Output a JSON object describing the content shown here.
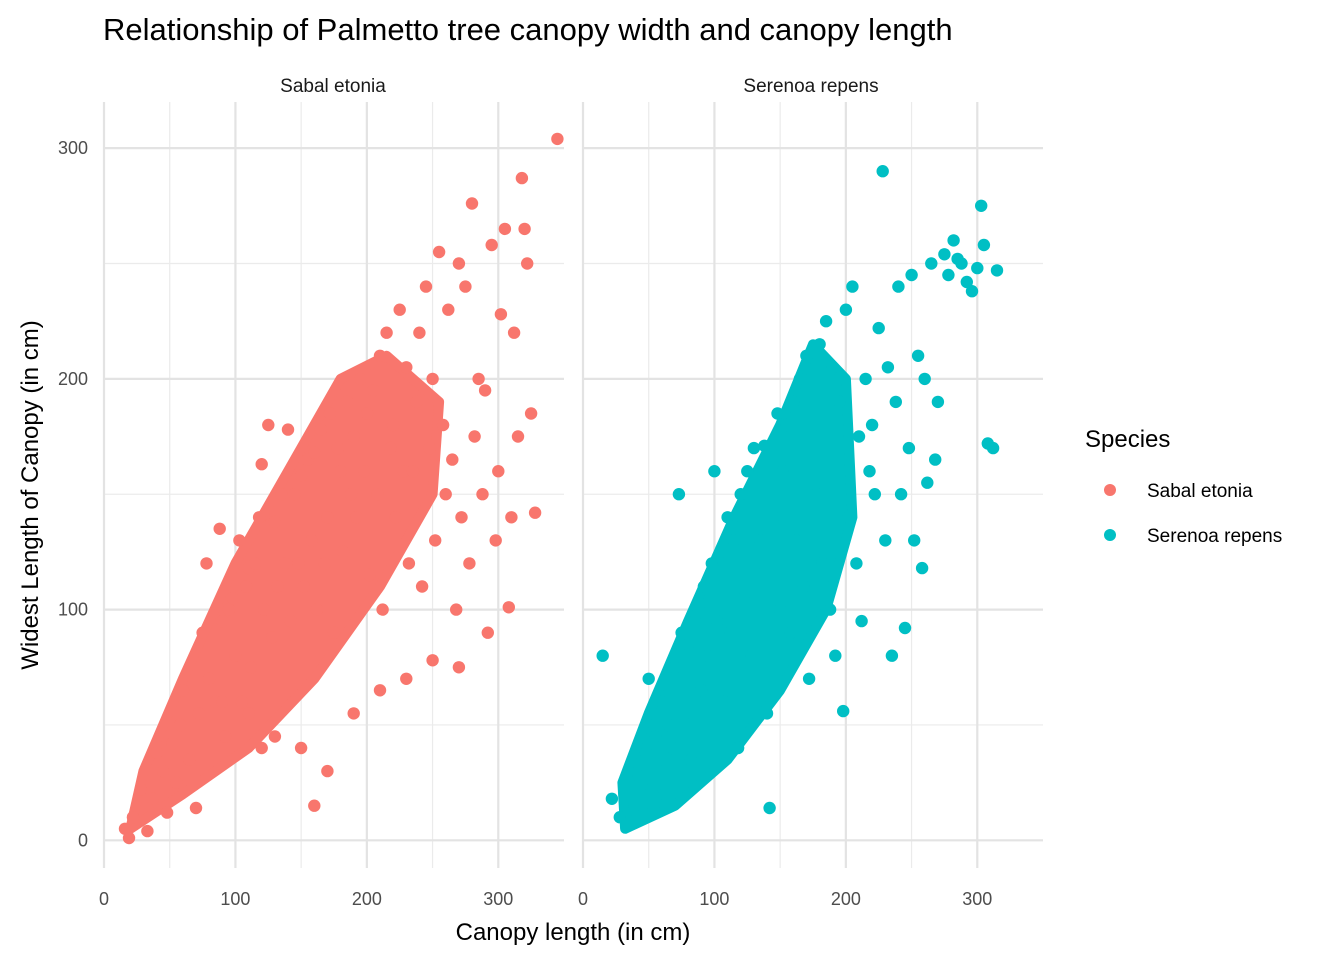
{
  "chart_data": {
    "type": "scatter",
    "title": "Relationship of Palmetto tree canopy width and canopy length",
    "xlabel": "Canopy length (in cm)",
    "ylabel": "Widest Length of Canopy (in cm)",
    "xlim": [
      0,
      350
    ],
    "ylim": [
      -12,
      320
    ],
    "x_ticks": [
      0,
      100,
      200,
      300
    ],
    "y_ticks": [
      0,
      100,
      200,
      300
    ],
    "grid": true,
    "legend": {
      "title": "Species",
      "position": "right"
    },
    "facets": [
      {
        "label": "Sabal etonia",
        "series": "Sabal etonia"
      },
      {
        "label": "Serenoa repens",
        "series": "Serenoa repens"
      }
    ],
    "series": [
      {
        "name": "Sabal etonia",
        "color": "#F8766D",
        "points": [
          [
            16,
            5
          ],
          [
            19,
            1
          ],
          [
            22,
            10
          ],
          [
            28,
            22
          ],
          [
            33,
            4
          ],
          [
            37,
            18
          ],
          [
            40,
            38
          ],
          [
            45,
            30
          ],
          [
            48,
            12
          ],
          [
            52,
            42
          ],
          [
            55,
            25
          ],
          [
            58,
            50
          ],
          [
            60,
            65
          ],
          [
            65,
            35
          ],
          [
            70,
            14
          ],
          [
            72,
            55
          ],
          [
            75,
            90
          ],
          [
            78,
            120
          ],
          [
            80,
            70
          ],
          [
            85,
            60
          ],
          [
            88,
            135
          ],
          [
            90,
            95
          ],
          [
            92,
            45
          ],
          [
            95,
            100
          ],
          [
            98,
            105
          ],
          [
            100,
            80
          ],
          [
            103,
            130
          ],
          [
            105,
            60
          ],
          [
            108,
            110
          ],
          [
            110,
            118
          ],
          [
            112,
            75
          ],
          [
            115,
            120
          ],
          [
            118,
            140
          ],
          [
            120,
            163
          ],
          [
            122,
            100
          ],
          [
            125,
            180
          ],
          [
            128,
            88
          ],
          [
            130,
            138
          ],
          [
            132,
            110
          ],
          [
            135,
            150
          ],
          [
            138,
            120
          ],
          [
            140,
            178
          ],
          [
            142,
            95
          ],
          [
            145,
            150
          ],
          [
            148,
            120
          ],
          [
            150,
            158
          ],
          [
            152,
            110
          ],
          [
            155,
            165
          ],
          [
            158,
            130
          ],
          [
            160,
            168
          ],
          [
            162,
            100
          ],
          [
            165,
            178
          ],
          [
            168,
            120
          ],
          [
            170,
            140
          ],
          [
            172,
            185
          ],
          [
            175,
            90
          ],
          [
            178,
            170
          ],
          [
            180,
            160
          ],
          [
            182,
            125
          ],
          [
            185,
            190
          ],
          [
            188,
            150
          ],
          [
            190,
            175
          ],
          [
            192,
            140
          ],
          [
            195,
            200
          ],
          [
            198,
            160
          ],
          [
            200,
            185
          ],
          [
            202,
            115
          ],
          [
            205,
            195
          ],
          [
            208,
            150
          ],
          [
            210,
            210
          ],
          [
            212,
            100
          ],
          [
            215,
            220
          ],
          [
            218,
            170
          ],
          [
            220,
            180
          ],
          [
            222,
            140
          ],
          [
            225,
            230
          ],
          [
            228,
            160
          ],
          [
            230,
            205
          ],
          [
            232,
            120
          ],
          [
            235,
            160
          ],
          [
            238,
            190
          ],
          [
            240,
            220
          ],
          [
            242,
            110
          ],
          [
            245,
            240
          ],
          [
            248,
            170
          ],
          [
            250,
            200
          ],
          [
            252,
            130
          ],
          [
            255,
            255
          ],
          [
            258,
            180
          ],
          [
            260,
            150
          ],
          [
            262,
            230
          ],
          [
            265,
            165
          ],
          [
            268,
            100
          ],
          [
            270,
            250
          ],
          [
            272,
            140
          ],
          [
            275,
            240
          ],
          [
            278,
            120
          ],
          [
            280,
            276
          ],
          [
            282,
            175
          ],
          [
            285,
            200
          ],
          [
            288,
            150
          ],
          [
            290,
            195
          ],
          [
            292,
            90
          ],
          [
            295,
            258
          ],
          [
            298,
            130
          ],
          [
            300,
            160
          ],
          [
            302,
            228
          ],
          [
            305,
            265
          ],
          [
            308,
            101
          ],
          [
            310,
            140
          ],
          [
            312,
            220
          ],
          [
            315,
            175
          ],
          [
            318,
            287
          ],
          [
            320,
            265
          ],
          [
            322,
            250
          ],
          [
            325,
            185
          ],
          [
            328,
            142
          ],
          [
            345,
            304
          ],
          [
            90,
            60
          ],
          [
            110,
            55
          ],
          [
            130,
            45
          ],
          [
            150,
            40
          ],
          [
            170,
            30
          ],
          [
            190,
            55
          ],
          [
            210,
            65
          ],
          [
            230,
            70
          ],
          [
            250,
            78
          ],
          [
            270,
            75
          ],
          [
            160,
            15
          ],
          [
            120,
            40
          ]
        ]
      },
      {
        "name": "Serenoa repens",
        "color": "#00BFC4",
        "points": [
          [
            15,
            80
          ],
          [
            22,
            18
          ],
          [
            28,
            10
          ],
          [
            33,
            25
          ],
          [
            38,
            8
          ],
          [
            42,
            28
          ],
          [
            45,
            15
          ],
          [
            48,
            38
          ],
          [
            50,
            70
          ],
          [
            52,
            22
          ],
          [
            55,
            45
          ],
          [
            58,
            35
          ],
          [
            60,
            60
          ],
          [
            62,
            20
          ],
          [
            65,
            50
          ],
          [
            68,
            40
          ],
          [
            70,
            75
          ],
          [
            73,
            150
          ],
          [
            75,
            90
          ],
          [
            78,
            55
          ],
          [
            80,
            85
          ],
          [
            82,
            35
          ],
          [
            85,
            95
          ],
          [
            88,
            100
          ],
          [
            90,
            65
          ],
          [
            92,
            110
          ],
          [
            95,
            80
          ],
          [
            98,
            120
          ],
          [
            100,
            160
          ],
          [
            102,
            95
          ],
          [
            105,
            125
          ],
          [
            108,
            60
          ],
          [
            110,
            140
          ],
          [
            112,
            90
          ],
          [
            115,
            130
          ],
          [
            118,
            40
          ],
          [
            120,
            150
          ],
          [
            122,
            105
          ],
          [
            125,
            160
          ],
          [
            128,
            80
          ],
          [
            130,
            170
          ],
          [
            132,
            120
          ],
          [
            135,
            130
          ],
          [
            138,
            171
          ],
          [
            140,
            55
          ],
          [
            142,
            14
          ],
          [
            145,
            140
          ],
          [
            148,
            185
          ],
          [
            150,
            100
          ],
          [
            152,
            160
          ],
          [
            155,
            180
          ],
          [
            158,
            90
          ],
          [
            160,
            190
          ],
          [
            162,
            130
          ],
          [
            165,
            200
          ],
          [
            168,
            110
          ],
          [
            170,
            210
          ],
          [
            172,
            70
          ],
          [
            175,
            180
          ],
          [
            178,
            150
          ],
          [
            180,
            215
          ],
          [
            182,
            120
          ],
          [
            185,
            225
          ],
          [
            188,
            100
          ],
          [
            190,
            205
          ],
          [
            192,
            80
          ],
          [
            195,
            190
          ],
          [
            198,
            56
          ],
          [
            200,
            230
          ],
          [
            202,
            140
          ],
          [
            205,
            240
          ],
          [
            208,
            120
          ],
          [
            210,
            175
          ],
          [
            212,
            95
          ],
          [
            215,
            200
          ],
          [
            218,
            160
          ],
          [
            220,
            180
          ],
          [
            222,
            150
          ],
          [
            225,
            222
          ],
          [
            228,
            290
          ],
          [
            230,
            130
          ],
          [
            232,
            205
          ],
          [
            235,
            80
          ],
          [
            238,
            190
          ],
          [
            240,
            240
          ],
          [
            242,
            150
          ],
          [
            245,
            92
          ],
          [
            248,
            170
          ],
          [
            250,
            245
          ],
          [
            252,
            130
          ],
          [
            255,
            210
          ],
          [
            258,
            118
          ],
          [
            260,
            200
          ],
          [
            262,
            155
          ],
          [
            265,
            250
          ],
          [
            268,
            165
          ],
          [
            270,
            190
          ],
          [
            275,
            254
          ],
          [
            278,
            245
          ],
          [
            282,
            260
          ],
          [
            285,
            252
          ],
          [
            288,
            250
          ],
          [
            292,
            242
          ],
          [
            296,
            238
          ],
          [
            300,
            248
          ],
          [
            303,
            275
          ],
          [
            305,
            258
          ],
          [
            308,
            172
          ],
          [
            312,
            170
          ],
          [
            315,
            247
          ]
        ]
      }
    ]
  }
}
